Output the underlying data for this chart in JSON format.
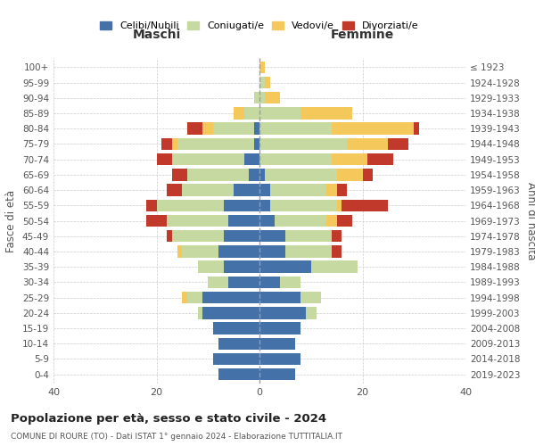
{
  "age_groups": [
    "0-4",
    "5-9",
    "10-14",
    "15-19",
    "20-24",
    "25-29",
    "30-34",
    "35-39",
    "40-44",
    "45-49",
    "50-54",
    "55-59",
    "60-64",
    "65-69",
    "70-74",
    "75-79",
    "80-84",
    "85-89",
    "90-94",
    "95-99",
    "100+"
  ],
  "birth_years": [
    "2019-2023",
    "2014-2018",
    "2009-2013",
    "2004-2008",
    "1999-2003",
    "1994-1998",
    "1989-1993",
    "1984-1988",
    "1979-1983",
    "1974-1978",
    "1969-1973",
    "1964-1968",
    "1959-1963",
    "1954-1958",
    "1949-1953",
    "1944-1948",
    "1939-1943",
    "1934-1938",
    "1929-1933",
    "1924-1928",
    "≤ 1923"
  ],
  "colors": {
    "celibi": "#4472a8",
    "coniugati": "#c5d9a0",
    "vedovi": "#f5c85c",
    "divorziati": "#c0392b"
  },
  "maschi": {
    "celibi": [
      8,
      9,
      8,
      9,
      11,
      11,
      6,
      7,
      8,
      7,
      6,
      7,
      5,
      2,
      3,
      1,
      1,
      0,
      0,
      0,
      0
    ],
    "coniugati": [
      0,
      0,
      0,
      0,
      1,
      3,
      4,
      5,
      7,
      10,
      12,
      13,
      10,
      12,
      14,
      15,
      8,
      3,
      1,
      0,
      0
    ],
    "vedovi": [
      0,
      0,
      0,
      0,
      0,
      1,
      0,
      0,
      1,
      0,
      0,
      0,
      0,
      0,
      0,
      1,
      2,
      2,
      0,
      0,
      0
    ],
    "divorziati": [
      0,
      0,
      0,
      0,
      0,
      0,
      0,
      0,
      0,
      1,
      4,
      2,
      3,
      3,
      3,
      2,
      3,
      0,
      0,
      0,
      0
    ]
  },
  "femmine": {
    "celibi": [
      7,
      8,
      7,
      8,
      9,
      8,
      4,
      10,
      5,
      5,
      3,
      2,
      2,
      1,
      0,
      0,
      0,
      0,
      0,
      0,
      0
    ],
    "coniugati": [
      0,
      0,
      0,
      0,
      2,
      4,
      4,
      9,
      9,
      9,
      10,
      13,
      11,
      14,
      14,
      17,
      14,
      8,
      1,
      1,
      0
    ],
    "vedovi": [
      0,
      0,
      0,
      0,
      0,
      0,
      0,
      0,
      0,
      0,
      2,
      1,
      2,
      5,
      7,
      8,
      16,
      10,
      3,
      1,
      1
    ],
    "divorziati": [
      0,
      0,
      0,
      0,
      0,
      0,
      0,
      0,
      2,
      2,
      3,
      9,
      2,
      2,
      5,
      4,
      1,
      0,
      0,
      0,
      0
    ]
  },
  "xlim": 40,
  "title": "Popolazione per età, sesso e stato civile - 2024",
  "subtitle": "COMUNE DI ROURE (TO) - Dati ISTAT 1° gennaio 2024 - Elaborazione TUTTITALIA.IT",
  "ylabel_left": "Fasce di età",
  "ylabel_right": "Anni di nascita",
  "xlabel_left": "Maschi",
  "xlabel_right": "Femmine",
  "legend_labels": [
    "Celibi/Nubili",
    "Coniugati/e",
    "Vedovi/e",
    "Divorziati/e"
  ],
  "background_color": "#ffffff",
  "grid_color": "#cccccc"
}
